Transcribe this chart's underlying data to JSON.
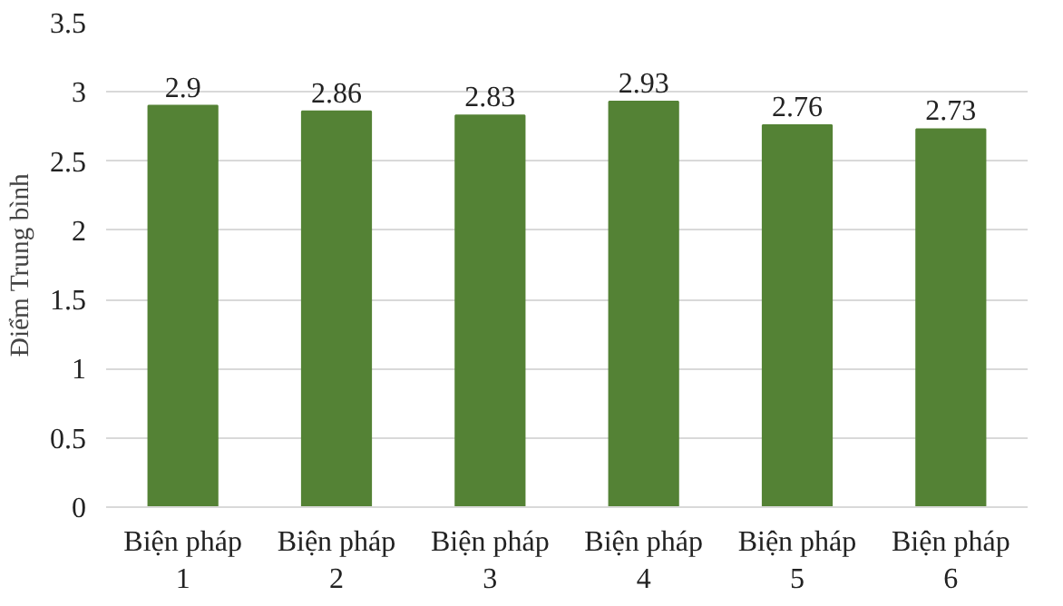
{
  "chart_data": {
    "type": "bar",
    "ylabel": "Điểm Trung bình",
    "categories": [
      "Biện pháp 1",
      "Biện pháp 2",
      "Biện pháp 3",
      "Biện pháp 4",
      "Biện pháp 5",
      "Biện pháp 6"
    ],
    "values": [
      2.9,
      2.86,
      2.83,
      2.93,
      2.76,
      2.73
    ],
    "color": "#548235",
    "ylim": [
      0,
      3.5
    ],
    "yticks": [
      0,
      0.5,
      1,
      1.5,
      2,
      2.5,
      3,
      3.5
    ],
    "grid": "y",
    "data_labels": true
  }
}
